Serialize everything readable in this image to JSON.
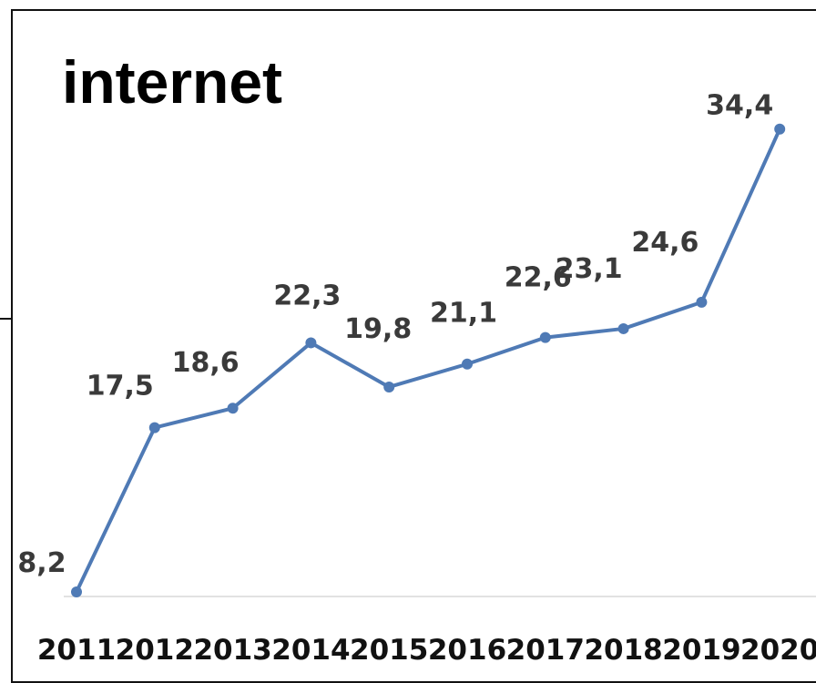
{
  "chart_data": {
    "type": "line",
    "title": "internet",
    "categories": [
      "2011",
      "2012",
      "2013",
      "2014",
      "2015",
      "2016",
      "2017",
      "2018",
      "2019",
      "2020"
    ],
    "values": [
      8.2,
      17.5,
      18.6,
      22.3,
      19.8,
      21.1,
      22.6,
      23.1,
      24.6,
      34.4
    ],
    "data_labels": [
      "8,2",
      "17,5",
      "18,6",
      "22,3",
      "19,8",
      "21,1",
      "22,6",
      "23,1",
      "24,6",
      "34,4"
    ],
    "xlabel": "",
    "ylabel": "",
    "grid": false,
    "legend": "none",
    "line_color": "#4f7ab5"
  }
}
